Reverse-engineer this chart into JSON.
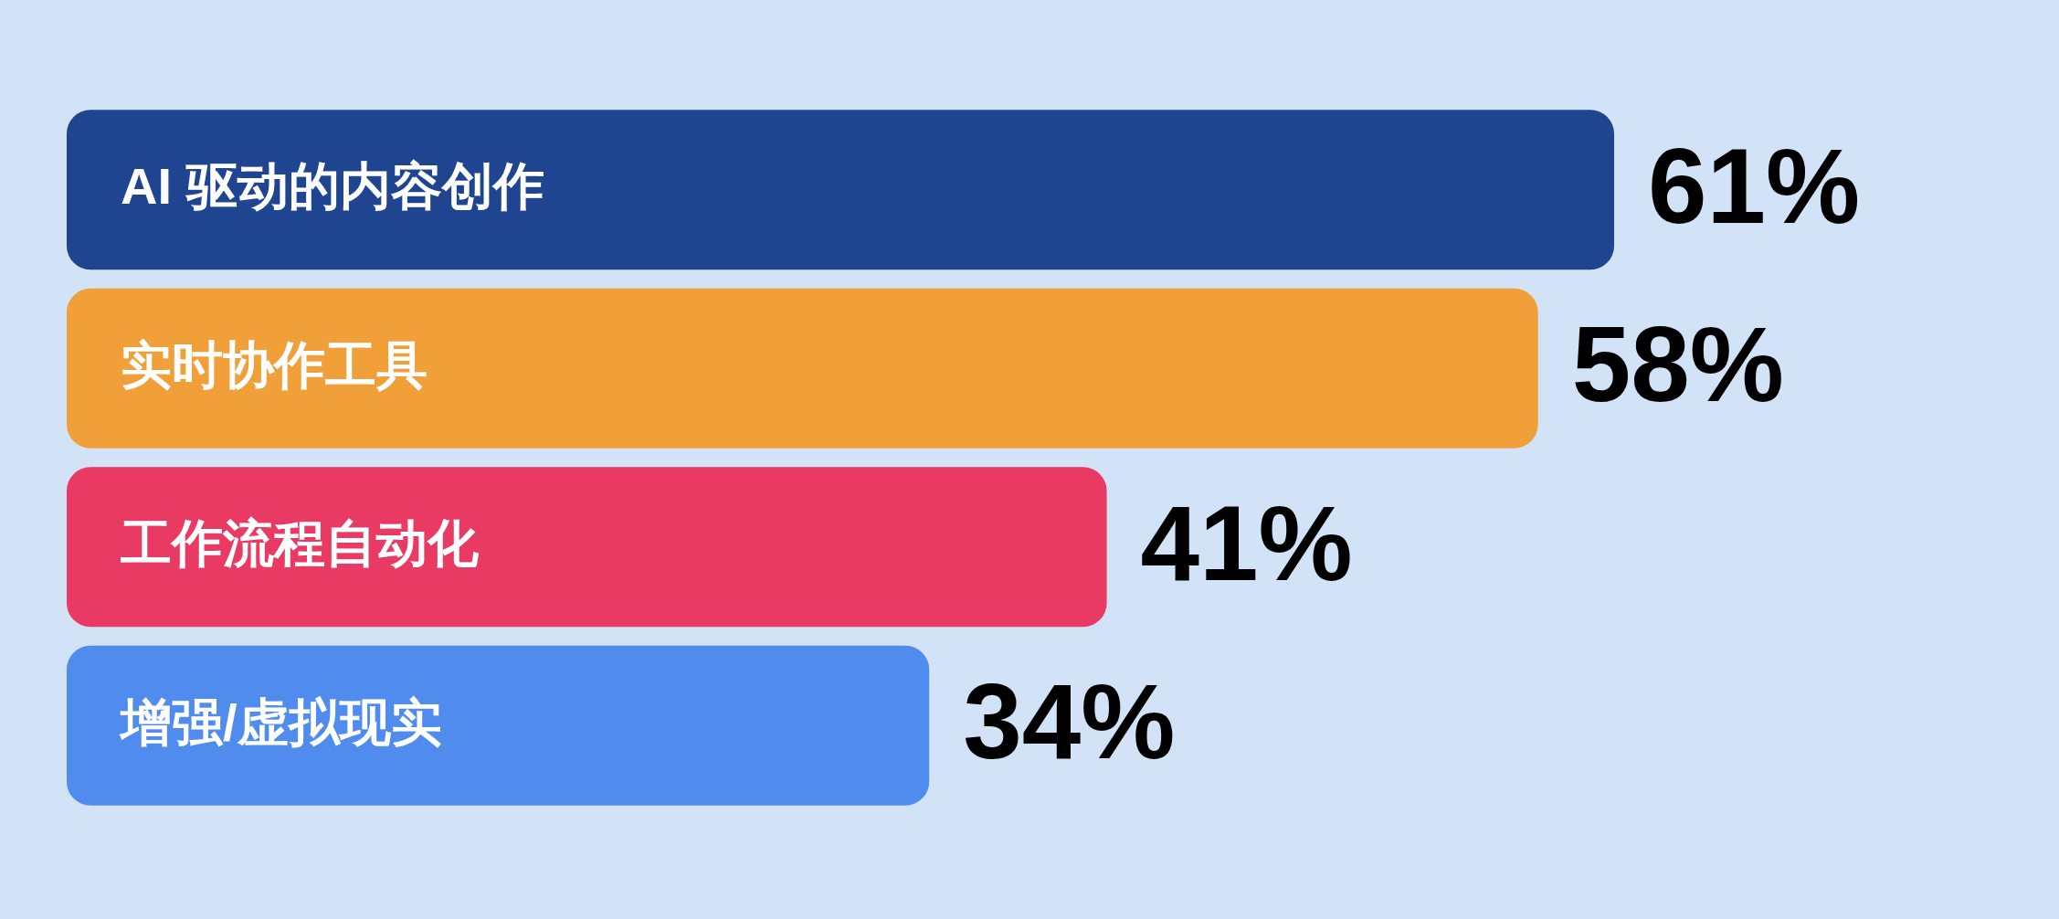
{
  "chart_data": {
    "type": "bar",
    "orientation": "horizontal",
    "categories": [
      "AI 驱动的内容创作",
      "实时协作工具",
      "工作流程自动化",
      "增强/虚拟现实"
    ],
    "values": [
      61,
      58,
      41,
      34
    ],
    "colors": [
      "#1f4591",
      "#f19f38",
      "#e83a62",
      "#508bee"
    ],
    "value_labels": [
      "61%",
      "58%",
      "41%",
      "34%"
    ],
    "tick_labels": false,
    "legend": false
  }
}
